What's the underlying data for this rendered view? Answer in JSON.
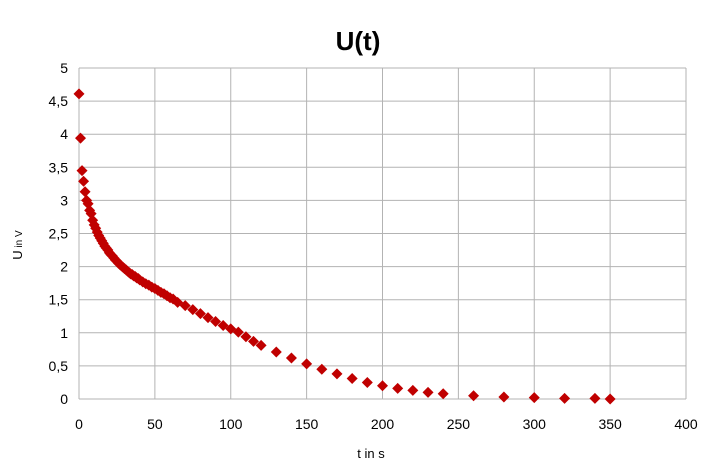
{
  "chart_data": {
    "type": "scatter",
    "title": "U(t)",
    "xlabel": "t in s",
    "ylabel_main": "U",
    "ylabel_sub": " in V",
    "xlim": [
      0,
      400
    ],
    "ylim": [
      0,
      5
    ],
    "xticks": [
      0,
      50,
      100,
      150,
      200,
      250,
      300,
      350,
      400
    ],
    "xtick_labels": [
      "0",
      "50",
      "100",
      "150",
      "200",
      "250",
      "300",
      "350",
      "400"
    ],
    "yticks": [
      0,
      0.5,
      1,
      1.5,
      2,
      2.5,
      3,
      3.5,
      4,
      4.5,
      5
    ],
    "ytick_labels": [
      "0",
      "0,5",
      "1",
      "1,5",
      "2",
      "2,5",
      "3",
      "3,5",
      "4",
      "4,5",
      "5"
    ],
    "grid": true,
    "legend": "none",
    "marker_color": "#c00000",
    "series": [
      {
        "points": [
          [
            0,
            4.61
          ],
          [
            1,
            3.94
          ],
          [
            2,
            3.45
          ],
          [
            3,
            3.29
          ],
          [
            4,
            3.13
          ],
          [
            5,
            3.0
          ],
          [
            6,
            2.95
          ],
          [
            7,
            2.85
          ],
          [
            8,
            2.8
          ],
          [
            9,
            2.7
          ],
          [
            10,
            2.63
          ],
          [
            11,
            2.58
          ],
          [
            12,
            2.52
          ],
          [
            13,
            2.47
          ],
          [
            14,
            2.43
          ],
          [
            15,
            2.39
          ],
          [
            16,
            2.35
          ],
          [
            17,
            2.31
          ],
          [
            18,
            2.28
          ],
          [
            19,
            2.25
          ],
          [
            20,
            2.21
          ],
          [
            21,
            2.18
          ],
          [
            22,
            2.16
          ],
          [
            23,
            2.13
          ],
          [
            24,
            2.1
          ],
          [
            25,
            2.08
          ],
          [
            26,
            2.05
          ],
          [
            27,
            2.03
          ],
          [
            28,
            2.01
          ],
          [
            29,
            1.99
          ],
          [
            30,
            1.97
          ],
          [
            31,
            1.95
          ],
          [
            32,
            1.93
          ],
          [
            33,
            1.91
          ],
          [
            34,
            1.89
          ],
          [
            35,
            1.88
          ],
          [
            36,
            1.86
          ],
          [
            37,
            1.85
          ],
          [
            38,
            1.83
          ],
          [
            39,
            1.82
          ],
          [
            40,
            1.8
          ],
          [
            42,
            1.77
          ],
          [
            44,
            1.74
          ],
          [
            46,
            1.72
          ],
          [
            48,
            1.69
          ],
          [
            50,
            1.67
          ],
          [
            52,
            1.64
          ],
          [
            54,
            1.61
          ],
          [
            56,
            1.59
          ],
          [
            58,
            1.56
          ],
          [
            60,
            1.53
          ],
          [
            62,
            1.51
          ],
          [
            65,
            1.46
          ],
          [
            70,
            1.41
          ],
          [
            75,
            1.35
          ],
          [
            80,
            1.29
          ],
          [
            85,
            1.23
          ],
          [
            90,
            1.17
          ],
          [
            95,
            1.11
          ],
          [
            100,
            1.06
          ],
          [
            105,
            1.01
          ],
          [
            110,
            0.94
          ],
          [
            115,
            0.87
          ],
          [
            120,
            0.81
          ],
          [
            130,
            0.71
          ],
          [
            140,
            0.62
          ],
          [
            150,
            0.53
          ],
          [
            160,
            0.45
          ],
          [
            170,
            0.38
          ],
          [
            180,
            0.31
          ],
          [
            190,
            0.25
          ],
          [
            200,
            0.2
          ],
          [
            210,
            0.16
          ],
          [
            220,
            0.13
          ],
          [
            230,
            0.1
          ],
          [
            240,
            0.08
          ],
          [
            260,
            0.05
          ],
          [
            280,
            0.03
          ],
          [
            300,
            0.02
          ],
          [
            320,
            0.01
          ],
          [
            340,
            0.01
          ],
          [
            350,
            0.0
          ]
        ]
      }
    ]
  }
}
